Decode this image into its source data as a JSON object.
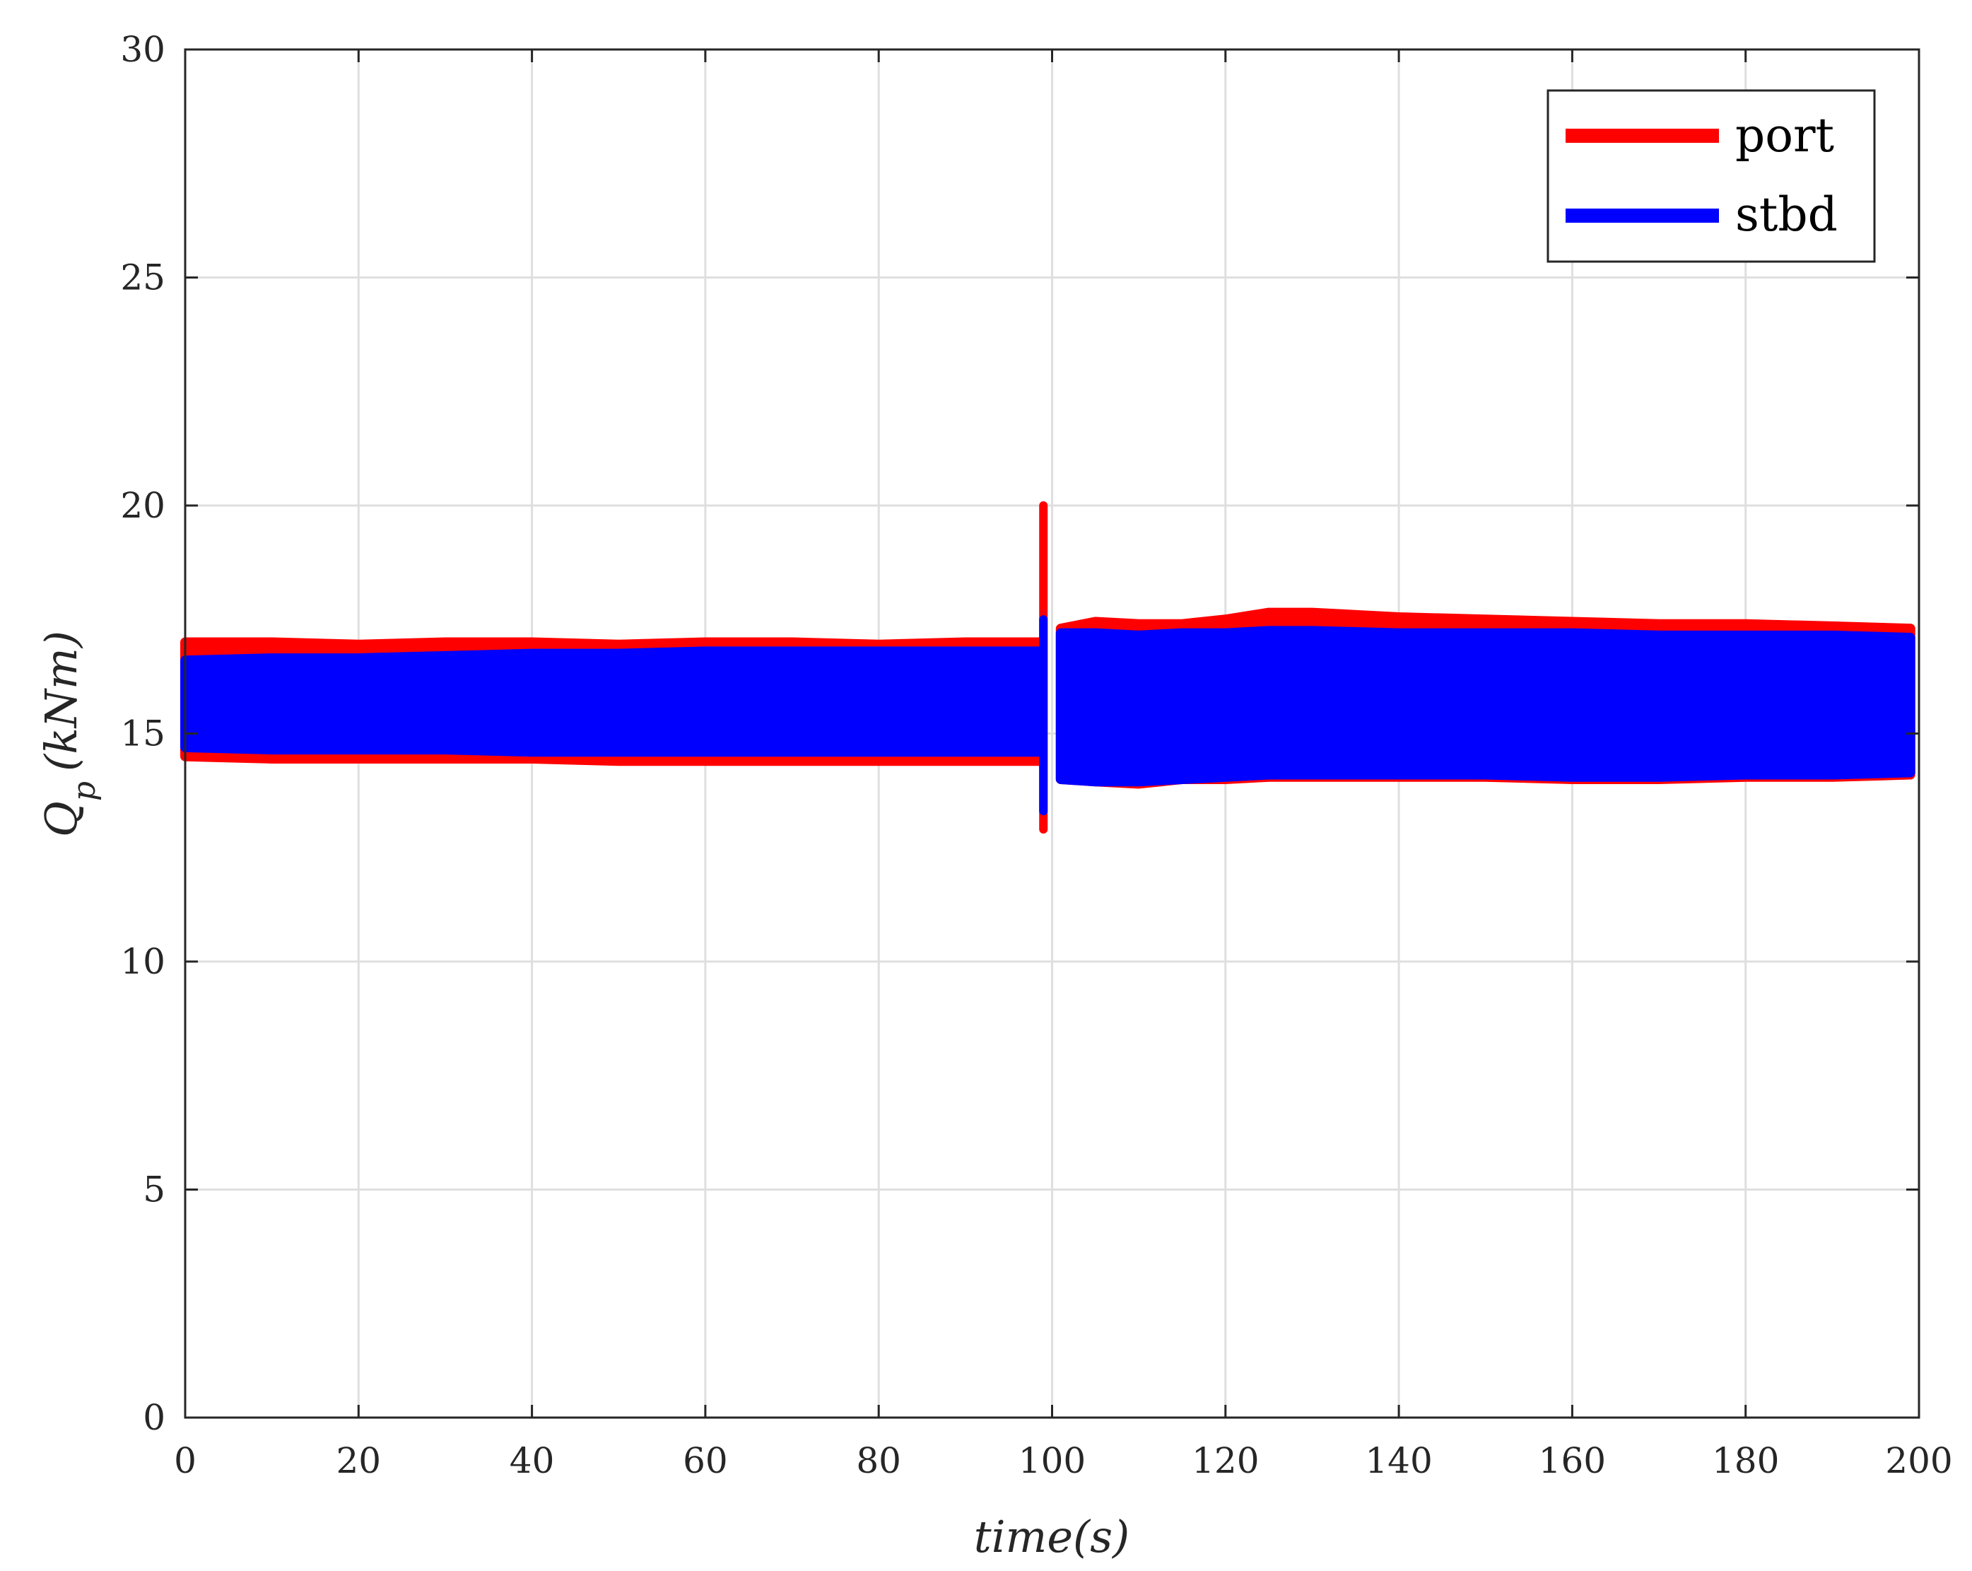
{
  "chart_data": {
    "type": "area",
    "title": "",
    "xlabel": "time(s)",
    "ylabel": "Q_p (kNm)",
    "ylabel_main": "Q",
    "ylabel_sub": "p",
    "ylabel_unit": "(kNm)",
    "xlim": [
      0,
      200
    ],
    "ylim": [
      0,
      30
    ],
    "xticks": [
      0,
      20,
      40,
      60,
      80,
      100,
      120,
      140,
      160,
      180,
      200
    ],
    "yticks": [
      0,
      5,
      10,
      15,
      20,
      25,
      30
    ],
    "grid": true,
    "legend_position": "top-right",
    "series": [
      {
        "name": "port",
        "color": "#ff0000",
        "x": [
          0,
          10,
          20,
          30,
          40,
          50,
          60,
          70,
          80,
          90,
          98.5,
          101,
          105,
          110,
          115,
          120,
          125,
          130,
          140,
          150,
          160,
          170,
          180,
          190,
          199
        ],
        "upper": [
          17.0,
          17.0,
          16.95,
          17.0,
          17.0,
          16.95,
          17.0,
          17.0,
          16.95,
          17.0,
          17.0,
          17.3,
          17.45,
          17.4,
          17.4,
          17.5,
          17.65,
          17.65,
          17.55,
          17.5,
          17.45,
          17.4,
          17.4,
          17.35,
          17.3
        ],
        "lower": [
          14.5,
          14.45,
          14.45,
          14.45,
          14.45,
          14.4,
          14.4,
          14.4,
          14.4,
          14.4,
          14.4,
          14.0,
          13.95,
          13.9,
          14.0,
          14.0,
          14.05,
          14.05,
          14.05,
          14.05,
          14.0,
          14.0,
          14.05,
          14.05,
          14.1
        ],
        "spike": {
          "x": 99,
          "min": 12.9,
          "max": 20.0
        }
      },
      {
        "name": "stbd",
        "color": "#0000ff",
        "x": [
          0,
          10,
          20,
          30,
          40,
          50,
          60,
          70,
          80,
          90,
          98.5,
          101,
          105,
          110,
          115,
          120,
          125,
          130,
          140,
          150,
          160,
          170,
          180,
          190,
          199
        ],
        "upper": [
          16.6,
          16.65,
          16.65,
          16.7,
          16.75,
          16.75,
          16.8,
          16.8,
          16.8,
          16.8,
          16.8,
          17.2,
          17.2,
          17.15,
          17.2,
          17.2,
          17.25,
          17.25,
          17.2,
          17.2,
          17.2,
          17.15,
          17.15,
          17.15,
          17.1
        ],
        "lower": [
          14.7,
          14.65,
          14.65,
          14.65,
          14.6,
          14.6,
          14.6,
          14.6,
          14.6,
          14.6,
          14.6,
          14.0,
          13.95,
          13.95,
          14.0,
          14.05,
          14.1,
          14.1,
          14.1,
          14.1,
          14.05,
          14.05,
          14.1,
          14.1,
          14.15
        ],
        "spike": {
          "x": 99,
          "min": 13.3,
          "max": 17.5
        }
      }
    ]
  }
}
